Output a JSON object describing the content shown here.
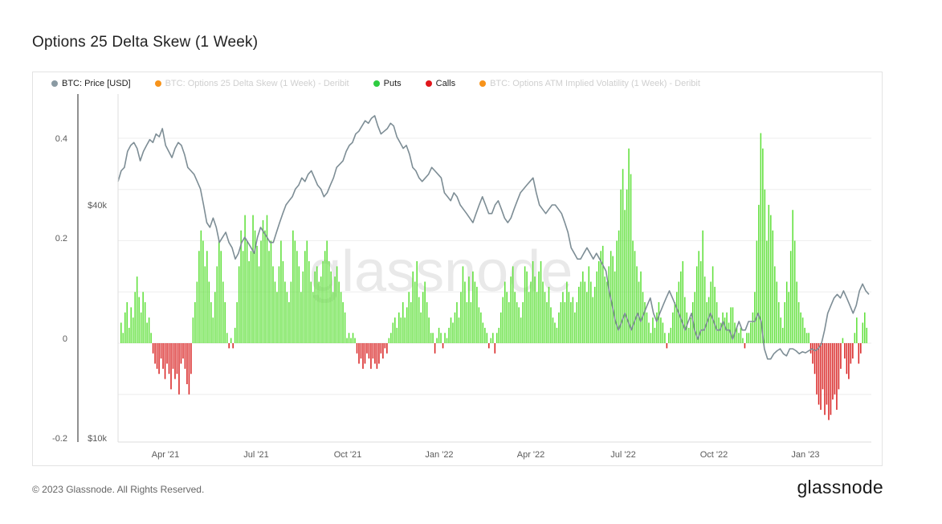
{
  "title": "Options 25 Delta Skew (1 Week)",
  "footer": {
    "copyright": "© 2023 Glassnode. All Rights Reserved.",
    "brand": "glassnode"
  },
  "watermark": "glassnode",
  "legend": [
    {
      "label": "BTC: Price [USD]",
      "color": "#8a9aa3",
      "active": true
    },
    {
      "label": "BTC: Options 25 Delta Skew (1 Week) - Deribit",
      "color": "#f7931a",
      "active": false
    },
    {
      "label": "Puts",
      "color": "#2ecc40",
      "active": true
    },
    {
      "label": "Calls",
      "color": "#e0161b",
      "active": true
    },
    {
      "label": "BTC: Options ATM Implied Volatility (1 Week) - Deribit",
      "color": "#f7931a",
      "active": false
    }
  ],
  "colors": {
    "puts": "#5fe03a",
    "calls": "#d92323",
    "price": "#7d8d95",
    "grid": "#eeeeee"
  },
  "chart_data": {
    "type": "bar",
    "x_axis": {
      "labels": [
        "Apr '21",
        "Jul '21",
        "Oct '21",
        "Jan '22",
        "Apr '22",
        "Jul '22",
        "Oct '22",
        "Jan '23"
      ]
    },
    "y_left": {
      "label": "",
      "ticks": [
        "0.4",
        "0.2",
        "0",
        "-0.2"
      ],
      "ylim": [
        -0.2,
        0.45
      ]
    },
    "y_right": {
      "label": "",
      "ticks": [
        "$40k",
        "$10k"
      ],
      "scale": "log"
    },
    "grid": true,
    "legend_position": "top-left",
    "series": [
      {
        "name": "Puts / Calls",
        "kind": "bar",
        "x_range": [
          "2021-03-01",
          "2023-02-24"
        ],
        "values": [
          0.04,
          0.02,
          0.06,
          0.08,
          0.03,
          0.07,
          0.05,
          0.1,
          0.13,
          0.09,
          0.06,
          0.1,
          0.08,
          0.04,
          0.05,
          0.02,
          -0.02,
          -0.04,
          -0.05,
          -0.06,
          -0.03,
          -0.05,
          -0.07,
          -0.04,
          -0.06,
          -0.09,
          -0.05,
          -0.07,
          -0.06,
          -0.1,
          -0.04,
          -0.03,
          -0.05,
          -0.08,
          -0.1,
          -0.06,
          0.05,
          0.08,
          0.12,
          0.18,
          0.22,
          0.2,
          0.15,
          0.18,
          0.12,
          0.08,
          0.05,
          0.1,
          0.15,
          0.2,
          0.18,
          0.12,
          0.08,
          0.02,
          -0.01,
          0.01,
          -0.01,
          0.03,
          0.08,
          0.15,
          0.22,
          0.18,
          0.25,
          0.2,
          0.16,
          0.18,
          0.25,
          0.22,
          0.19,
          0.15,
          0.2,
          0.24,
          0.22,
          0.25,
          0.18,
          0.2,
          0.15,
          0.12,
          0.1,
          0.15,
          0.2,
          0.16,
          0.12,
          0.1,
          0.08,
          0.12,
          0.22,
          0.2,
          0.18,
          0.15,
          0.1,
          0.14,
          0.18,
          0.2,
          0.16,
          0.12,
          0.1,
          0.14,
          0.15,
          0.12,
          0.13,
          0.16,
          0.18,
          0.2,
          0.16,
          0.14,
          0.1,
          0.13,
          0.15,
          0.12,
          0.1,
          0.08,
          0.06,
          0.01,
          0.02,
          0.01,
          0.02,
          0.01,
          -0.02,
          -0.04,
          -0.03,
          -0.05,
          -0.04,
          -0.02,
          -0.03,
          -0.05,
          -0.03,
          -0.04,
          -0.05,
          -0.04,
          -0.02,
          -0.03,
          -0.01,
          -0.02,
          0.01,
          0.02,
          0.04,
          0.05,
          0.03,
          0.06,
          0.05,
          0.08,
          0.05,
          0.07,
          0.1,
          0.08,
          0.14,
          0.12,
          0.16,
          0.09,
          0.06,
          0.1,
          0.12,
          0.08,
          0.05,
          0.02,
          0.02,
          -0.02,
          0.01,
          0.03,
          0.02,
          -0.01,
          0.02,
          0.01,
          0.03,
          0.05,
          0.04,
          0.06,
          0.08,
          0.05,
          0.1,
          0.15,
          0.12,
          0.08,
          0.13,
          0.08,
          0.14,
          0.12,
          0.11,
          0.07,
          0.06,
          0.04,
          0.03,
          0.02,
          -0.01,
          0.01,
          0.02,
          -0.02,
          0.02,
          0.03,
          0.06,
          0.09,
          0.12,
          0.1,
          0.08,
          0.13,
          0.15,
          0.1,
          0.08,
          0.07,
          0.05,
          0.08,
          0.15,
          0.14,
          0.1,
          0.12,
          0.16,
          0.13,
          0.1,
          0.14,
          0.16,
          0.12,
          0.1,
          0.08,
          0.11,
          0.07,
          0.05,
          0.04,
          0.03,
          0.06,
          0.08,
          0.1,
          0.08,
          0.12,
          0.1,
          0.08,
          0.09,
          0.06,
          0.08,
          0.11,
          0.12,
          0.14,
          0.12,
          0.1,
          0.15,
          0.12,
          0.09,
          0.11,
          0.14,
          0.16,
          0.18,
          0.19,
          0.13,
          0.12,
          0.15,
          0.18,
          0.17,
          0.14,
          0.2,
          0.22,
          0.3,
          0.34,
          0.26,
          0.3,
          0.38,
          0.33,
          0.2,
          0.18,
          0.15,
          0.12,
          0.14,
          0.1,
          0.08,
          0.06,
          0.04,
          0.02,
          0.05,
          0.03,
          0.06,
          0.08,
          0.05,
          0.04,
          0.02,
          -0.01,
          0.02,
          0.03,
          0.06,
          0.08,
          0.1,
          0.12,
          0.14,
          0.16,
          0.09,
          0.06,
          0.03,
          0.05,
          0.08,
          0.1,
          0.15,
          0.18,
          0.16,
          0.22,
          0.13,
          0.08,
          0.09,
          0.12,
          0.15,
          0.11,
          0.08,
          0.05,
          0.04,
          0.06,
          0.05,
          0.06,
          0.04,
          0.07,
          0.07,
          0.04,
          0.03,
          0.02,
          0.03,
          0.01,
          -0.01,
          0.02,
          0.02,
          0.04,
          0.06,
          0.1,
          0.2,
          0.27,
          0.41,
          0.38,
          0.3,
          0.2,
          0.27,
          0.25,
          0.22,
          0.15,
          0.12,
          0.08,
          0.05,
          0.03,
          0.08,
          0.12,
          0.1,
          0.18,
          0.26,
          0.2,
          0.12,
          0.08,
          0.06,
          0.05,
          0.03,
          0.02,
          0.02,
          -0.02,
          -0.04,
          -0.06,
          -0.1,
          -0.12,
          -0.13,
          -0.09,
          -0.14,
          -0.12,
          -0.15,
          -0.14,
          -0.11,
          -0.1,
          -0.13,
          -0.09,
          -0.05,
          0.01,
          -0.03,
          -0.06,
          -0.07,
          -0.04,
          -0.03,
          0.02,
          0.05,
          -0.04,
          -0.02,
          0.04,
          0.06,
          0.03
        ]
      },
      {
        "name": "BTC: Price [USD]",
        "kind": "line",
        "unit": "USD",
        "x_range": [
          "2021-03-01",
          "2023-02-24"
        ],
        "values": [
          46000,
          49000,
          50000,
          55000,
          57000,
          58000,
          56000,
          52000,
          55000,
          57000,
          59000,
          58000,
          61000,
          60000,
          63000,
          57000,
          55000,
          53000,
          56000,
          58000,
          57000,
          54000,
          50000,
          49000,
          48000,
          46000,
          44000,
          40000,
          36000,
          35000,
          37000,
          35000,
          32000,
          33000,
          34000,
          32000,
          31000,
          29000,
          30000,
          32000,
          33000,
          32000,
          31000,
          30000,
          33000,
          35000,
          34000,
          33000,
          32000,
          32000,
          34000,
          36000,
          38000,
          40000,
          41000,
          42000,
          44000,
          45000,
          47000,
          46000,
          48000,
          49000,
          47000,
          45000,
          44000,
          42000,
          43000,
          45000,
          47000,
          50000,
          51000,
          52000,
          55000,
          57000,
          58000,
          61000,
          62000,
          64000,
          66000,
          65000,
          67000,
          68000,
          64000,
          61000,
          62000,
          63000,
          65000,
          64000,
          60000,
          58000,
          56000,
          57000,
          54000,
          50000,
          49000,
          47000,
          46000,
          47000,
          48000,
          50000,
          49000,
          48000,
          47000,
          43000,
          42000,
          41000,
          43000,
          42000,
          40000,
          39000,
          38000,
          37000,
          36000,
          38000,
          40000,
          42000,
          40000,
          38000,
          38000,
          40000,
          41000,
          39000,
          37000,
          36000,
          37000,
          39000,
          41000,
          43000,
          44000,
          45000,
          46000,
          47000,
          43000,
          40000,
          39000,
          38000,
          39000,
          40000,
          40000,
          39000,
          38000,
          36000,
          34000,
          31000,
          30000,
          29000,
          29000,
          30000,
          31000,
          30000,
          29000,
          30000,
          29000,
          28000,
          27000,
          24000,
          22000,
          20000,
          19000,
          20000,
          21000,
          20000,
          19000,
          20000,
          21000,
          20000,
          21000,
          22000,
          23000,
          21000,
          20000,
          21000,
          22000,
          23000,
          24000,
          23000,
          22000,
          21000,
          20000,
          19000,
          20000,
          21000,
          19000,
          18000,
          19000,
          19000,
          20000,
          21000,
          20000,
          19000,
          19000,
          20000,
          19000,
          19000,
          18000,
          19000,
          20000,
          19000,
          19000,
          20000,
          20000,
          20000,
          21000,
          20000,
          17000,
          16000,
          16000,
          16500,
          16800,
          17000,
          16500,
          16300,
          17000,
          17000,
          16800,
          16500,
          16700,
          16600,
          16800,
          17000,
          16800,
          17000,
          17500,
          19000,
          21000,
          22000,
          23000,
          23500,
          23000,
          24000,
          23000,
          22000,
          21000,
          22000,
          24000,
          25000,
          24000,
          23500
        ]
      }
    ]
  }
}
